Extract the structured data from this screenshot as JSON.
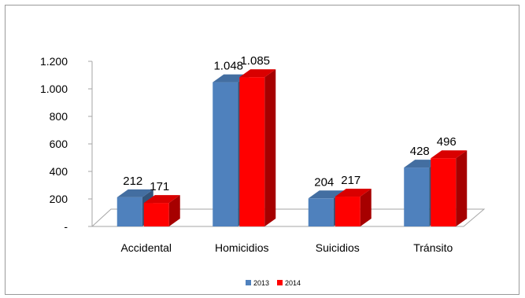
{
  "chart_data": {
    "type": "bar",
    "categories": [
      "Accidental",
      "Homicidios",
      "Suicidios",
      "Tránsito"
    ],
    "series": [
      {
        "name": "2013",
        "values": [
          212,
          1048,
          204,
          428
        ],
        "labels": [
          "212",
          "1.048",
          "204",
          "428"
        ]
      },
      {
        "name": "2014",
        "values": [
          171,
          1085,
          217,
          496
        ],
        "labels": [
          "171",
          "1.085",
          "217",
          "496"
        ]
      }
    ],
    "ylim": [
      0,
      1200
    ],
    "yticks": [
      0,
      200,
      400,
      600,
      800,
      1000,
      1200
    ],
    "ytick_labels": [
      "-",
      "200",
      "400",
      "600",
      "800",
      "1.000",
      "1.200"
    ],
    "colors": {
      "2013": "#4f81bd",
      "2014": "#ff0000"
    },
    "legend_position": "bottom",
    "grid": false,
    "style": "3d"
  }
}
